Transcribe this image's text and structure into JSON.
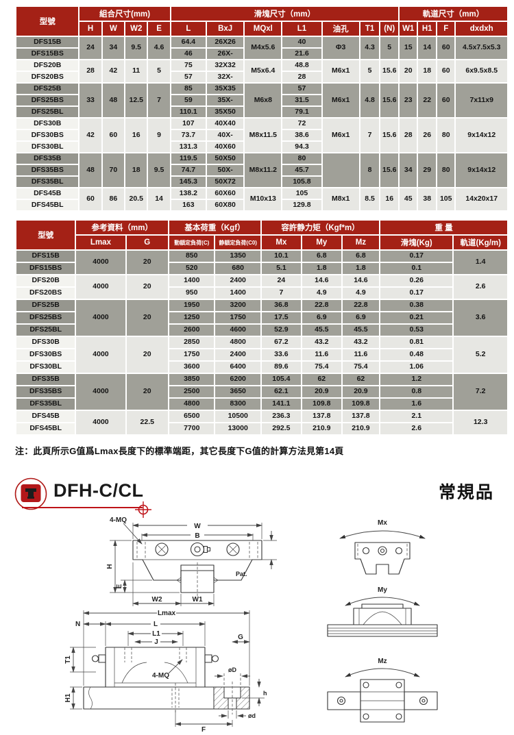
{
  "colors": {
    "header_red": "#A42116",
    "row_gray": "#A0A098",
    "row_light": "#E7E7E3",
    "accent_red": "#BE1218",
    "page_bg": "#ffffff"
  },
  "icons": {
    "logo": "brand-block-icon",
    "crosshair": "crosshair-target-icon"
  },
  "section": {
    "title": "DFH-C/CL",
    "tag": "常規品"
  },
  "note": "注：此頁所示G值爲Lmax長度下的標準端距，其它長度下G值的計算方法見第14頁",
  "table1": {
    "header": {
      "model": "型號",
      "groups": [
        "組合尺寸(mm)",
        "滑塊尺寸（mm）",
        "軌道尺寸（mm）"
      ],
      "cols": [
        "H",
        "W",
        "W2",
        "E",
        "L",
        "BxJ",
        "MQxl",
        "L1",
        "油孔",
        "T1",
        "(N)",
        "W1",
        "H1",
        "F",
        "dxdxh"
      ]
    },
    "column_order": [
      "models",
      "H",
      "W",
      "W2",
      "E",
      "L",
      "BxJ",
      "MQxl",
      "L1",
      "oil",
      "T1",
      "N",
      "W1",
      "H1",
      "F",
      "dxdxh"
    ],
    "groups": [
      {
        "shade": "gray",
        "models": [
          "DFS15B",
          "DFS15BS"
        ],
        "H": "24",
        "W": "34",
        "W2": "9.5",
        "E": "4.6",
        "L": [
          "64.4",
          "46"
        ],
        "BxJ": [
          "26X26",
          "26X-"
        ],
        "MQxl": "M4x5.6",
        "L1": [
          "40",
          "21.6"
        ],
        "oil": "Φ3",
        "T1": "4.3",
        "N": "5",
        "W1": "15",
        "H1": "14",
        "F": "60",
        "dxdxh": "4.5x7.5x5.3"
      },
      {
        "shade": "light",
        "models": [
          "DFS20B",
          "DFS20BS"
        ],
        "H": "28",
        "W": "42",
        "W2": "11",
        "E": "5",
        "L": [
          "75",
          "57"
        ],
        "BxJ": [
          "32X32",
          "32X-"
        ],
        "MQxl": "M5x6.4",
        "L1": [
          "48.8",
          "28"
        ],
        "oil": "M6x1",
        "T1": "5",
        "N": "15.6",
        "W1": "20",
        "H1": "18",
        "F": "60",
        "dxdxh": "6x9.5x8.5"
      },
      {
        "shade": "gray",
        "models": [
          "DFS25B",
          "DFS25BS",
          "DFS25BL"
        ],
        "H": "33",
        "W": "48",
        "W2": "12.5",
        "E": "7",
        "L": [
          "85",
          "59",
          "110.1"
        ],
        "BxJ": [
          "35X35",
          "35X-",
          "35X50"
        ],
        "MQxl": "M6x8",
        "L1": [
          "57",
          "31.5",
          "79.1"
        ],
        "oil": "M6x1",
        "T1": "4.8",
        "N": "15.6",
        "W1": "23",
        "H1": "22",
        "F": "60",
        "dxdxh": "7x11x9"
      },
      {
        "shade": "light",
        "models": [
          "DFS30B",
          "DFS30BS",
          "DFS30BL"
        ],
        "H": "42",
        "W": "60",
        "W2": "16",
        "E": "9",
        "L": [
          "107",
          "73.7",
          "131.3"
        ],
        "BxJ": [
          "40X40",
          "40X-",
          "40X60"
        ],
        "MQxl": "M8x11.5",
        "L1": [
          "72",
          "38.6",
          "94.3"
        ],
        "oil": "M6x1",
        "T1": "7",
        "N": "15.6",
        "W1": "28",
        "H1": "26",
        "F": "80",
        "dxdxh": "9x14x12"
      },
      {
        "shade": "gray",
        "models": [
          "DFS35B",
          "DFS35BS",
          "DFS35BL"
        ],
        "H": "48",
        "W": "70",
        "W2": "18",
        "E": "9.5",
        "L": [
          "119.5",
          "74.7",
          "145.3"
        ],
        "BxJ": [
          "50X50",
          "50X-",
          "50X72"
        ],
        "MQxl": "M8x11.2",
        "L1": [
          "80",
          "45.7",
          "105.8"
        ],
        "oil": "",
        "T1": "8",
        "N": "15.6",
        "W1": "34",
        "H1": "29",
        "F": "80",
        "dxdxh": "9x14x12"
      },
      {
        "shade": "light",
        "models": [
          "DFS45B",
          "DFS45BL"
        ],
        "H": "60",
        "W": "86",
        "W2": "20.5",
        "E": "14",
        "L": [
          "138.2",
          "163"
        ],
        "BxJ": [
          "60X60",
          "60X80"
        ],
        "MQxl": "M10x13",
        "L1": [
          "105",
          "129.8"
        ],
        "oil": "M8x1",
        "T1": "8.5",
        "N": "16",
        "W1": "45",
        "H1": "38",
        "F": "105",
        "dxdxh": "14x20x17"
      }
    ]
  },
  "table2": {
    "header": {
      "model": "型號",
      "groups": [
        "参考資料（mm）",
        "基本荷重（Kgf）",
        "容許静力矩（Kgf*m）",
        "重 量"
      ],
      "cols": [
        "Lmax",
        "G",
        "動額定負荷(C)",
        "静額定負荷(C0)",
        "Mx",
        "My",
        "Mz",
        "滑塊(Kg)",
        "軌道(Kg/m)"
      ]
    },
    "column_order": [
      "models",
      "Lmax",
      "G",
      "C",
      "C0",
      "Mx",
      "My",
      "Mz",
      "slider",
      "rail"
    ],
    "groups": [
      {
        "shade": "gray",
        "models": [
          "DFS15B",
          "DFS15BS"
        ],
        "Lmax": "4000",
        "G": "20",
        "C": [
          "850",
          "520"
        ],
        "C0": [
          "1350",
          "680"
        ],
        "Mx": [
          "10.1",
          "5.1"
        ],
        "My": [
          "6.8",
          "1.8"
        ],
        "Mz": [
          "6.8",
          "1.8"
        ],
        "slider": [
          "0.17",
          "0.1"
        ],
        "rail": "1.4"
      },
      {
        "shade": "light",
        "models": [
          "DFS20B",
          "DFS20BS"
        ],
        "Lmax": "4000",
        "G": "20",
        "C": [
          "1400",
          "950"
        ],
        "C0": [
          "2400",
          "1400"
        ],
        "Mx": [
          "24",
          "7"
        ],
        "My": [
          "14.6",
          "4.9"
        ],
        "Mz": [
          "14.6",
          "4.9"
        ],
        "slider": [
          "0.26",
          "0.17"
        ],
        "rail": "2.6"
      },
      {
        "shade": "gray",
        "models": [
          "DFS25B",
          "DFS25BS",
          "DFS25BL"
        ],
        "Lmax": "4000",
        "G": "20",
        "C": [
          "1950",
          "1250",
          "2600"
        ],
        "C0": [
          "3200",
          "1750",
          "4600"
        ],
        "Mx": [
          "36.8",
          "17.5",
          "52.9"
        ],
        "My": [
          "22.8",
          "6.9",
          "45.5"
        ],
        "Mz": [
          "22.8",
          "6.9",
          "45.5"
        ],
        "slider": [
          "0.38",
          "0.21",
          "0.53"
        ],
        "rail": "3.6"
      },
      {
        "shade": "light",
        "models": [
          "DFS30B",
          "DFS30BS",
          "DFS30BL"
        ],
        "Lmax": "4000",
        "G": "20",
        "C": [
          "2850",
          "1750",
          "3600"
        ],
        "C0": [
          "4800",
          "2400",
          "6400"
        ],
        "Mx": [
          "67.2",
          "33.6",
          "89.6"
        ],
        "My": [
          "43.2",
          "11.6",
          "75.4"
        ],
        "Mz": [
          "43.2",
          "11.6",
          "75.4"
        ],
        "slider": [
          "0.81",
          "0.48",
          "1.06"
        ],
        "rail": "5.2"
      },
      {
        "shade": "gray",
        "models": [
          "DFS35B",
          "DFS35BS",
          "DFS35BL"
        ],
        "Lmax": "4000",
        "G": "20",
        "C": [
          "3850",
          "2500",
          "4800"
        ],
        "C0": [
          "6200",
          "3650",
          "8300"
        ],
        "Mx": [
          "105.4",
          "62.1",
          "141.1"
        ],
        "My": [
          "62",
          "20.9",
          "109.8"
        ],
        "Mz": [
          "62",
          "20.9",
          "109.8"
        ],
        "slider": [
          "1.2",
          "0.8",
          "1.6"
        ],
        "rail": "7.2"
      },
      {
        "shade": "light",
        "models": [
          "DFS45B",
          "DFS45BL"
        ],
        "Lmax": "4000",
        "G": "22.5",
        "C": [
          "6500",
          "7700"
        ],
        "C0": [
          "10500",
          "13000"
        ],
        "Mx": [
          "236.3",
          "292.5"
        ],
        "My": [
          "137.8",
          "210.9"
        ],
        "Mz": [
          "137.8",
          "210.9"
        ],
        "slider": [
          "2.1",
          "2.6"
        ],
        "rail": "12.3"
      }
    ]
  },
  "diagrams": {
    "front_view": {
      "labels": {
        "W": "W",
        "B": "B",
        "MQ": "4-MQ",
        "H": "H",
        "E": "E",
        "W2": "W2",
        "W1": "W1",
        "pat": "Pat."
      }
    },
    "side_view": {
      "labels": {
        "Lmax": "Lmax",
        "L": "L",
        "L1": "L1",
        "J": "J",
        "N": "N",
        "T1": "T1",
        "H1": "H1",
        "G": "G",
        "D": "øD",
        "h": "h",
        "d": "ød",
        "F": "F",
        "MQ": "4-MQ"
      }
    },
    "moment_views": {
      "Mx": "Mx",
      "My": "My",
      "Mz": "Mz"
    }
  }
}
